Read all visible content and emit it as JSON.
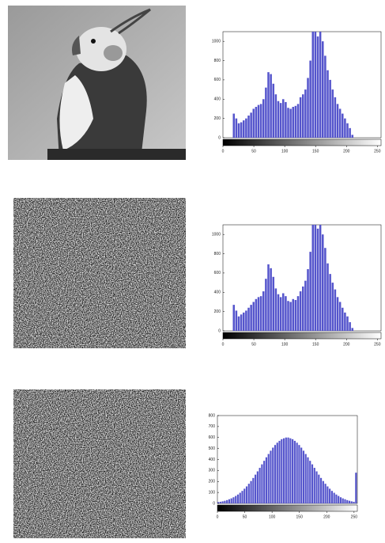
{
  "chart_data": [
    {
      "type": "histogram",
      "color": "#5555cc",
      "bins": [
        0,
        4,
        8,
        12,
        16,
        20,
        24,
        28,
        32,
        36,
        40,
        44,
        48,
        52,
        56,
        60,
        64,
        68,
        72,
        76,
        80,
        84,
        88,
        92,
        96,
        100,
        104,
        108,
        112,
        116,
        120,
        124,
        128,
        132,
        136,
        140,
        144,
        148,
        152,
        156,
        160,
        164,
        168,
        172,
        176,
        180,
        184,
        188,
        192,
        196,
        200,
        204,
        208,
        212,
        216,
        220,
        224,
        228,
        232,
        236,
        240,
        244,
        248,
        252,
        256
      ],
      "values": [
        0,
        0,
        0,
        0,
        250,
        200,
        150,
        160,
        180,
        200,
        230,
        260,
        300,
        320,
        340,
        350,
        400,
        520,
        680,
        660,
        560,
        450,
        380,
        360,
        400,
        370,
        310,
        300,
        320,
        330,
        350,
        420,
        450,
        500,
        620,
        800,
        1100,
        1100,
        1050,
        1100,
        1000,
        850,
        700,
        600,
        500,
        420,
        350,
        300,
        250,
        200,
        150,
        100,
        30,
        0,
        0,
        0,
        0,
        0,
        0,
        0,
        0,
        0,
        0,
        0
      ],
      "xlim": [
        0,
        256
      ],
      "xticks": [
        0,
        50,
        100,
        150,
        200,
        250
      ],
      "ylim": [
        0,
        1100
      ],
      "yticks": [
        0,
        200,
        400,
        600,
        800,
        1000
      ]
    },
    {
      "type": "histogram",
      "color": "#5555cc",
      "bins": [
        0,
        4,
        8,
        12,
        16,
        20,
        24,
        28,
        32,
        36,
        40,
        44,
        48,
        52,
        56,
        60,
        64,
        68,
        72,
        76,
        80,
        84,
        88,
        92,
        96,
        100,
        104,
        108,
        112,
        116,
        120,
        124,
        128,
        132,
        136,
        140,
        144,
        148,
        152,
        156,
        160,
        164,
        168,
        172,
        176,
        180,
        184,
        188,
        192,
        196,
        200,
        204,
        208,
        212,
        216,
        220,
        224,
        228,
        232,
        236,
        240,
        244,
        248,
        252,
        256
      ],
      "values": [
        0,
        0,
        0,
        0,
        270,
        210,
        150,
        170,
        190,
        210,
        240,
        270,
        300,
        330,
        350,
        360,
        410,
        540,
        690,
        650,
        560,
        440,
        380,
        350,
        390,
        360,
        310,
        300,
        330,
        320,
        360,
        410,
        460,
        520,
        640,
        820,
        1100,
        1100,
        1060,
        1100,
        1000,
        860,
        700,
        590,
        500,
        430,
        350,
        300,
        240,
        190,
        150,
        90,
        30,
        0,
        0,
        0,
        0,
        0,
        0,
        0,
        0,
        0,
        0,
        0
      ],
      "xlim": [
        0,
        256
      ],
      "xticks": [
        0,
        50,
        100,
        150,
        200,
        250
      ],
      "ylim": [
        0,
        1100
      ],
      "yticks": [
        0,
        200,
        400,
        600,
        800,
        1000
      ]
    },
    {
      "type": "histogram",
      "color": "#5555cc",
      "bins": [
        0,
        4,
        8,
        12,
        16,
        20,
        24,
        28,
        32,
        36,
        40,
        44,
        48,
        52,
        56,
        60,
        64,
        68,
        72,
        76,
        80,
        84,
        88,
        92,
        96,
        100,
        104,
        108,
        112,
        116,
        120,
        124,
        128,
        132,
        136,
        140,
        144,
        148,
        152,
        156,
        160,
        164,
        168,
        172,
        176,
        180,
        184,
        188,
        192,
        196,
        200,
        204,
        208,
        212,
        216,
        220,
        224,
        228,
        232,
        236,
        240,
        244,
        248,
        252,
        256
      ],
      "values": [
        12,
        15,
        19,
        24,
        30,
        38,
        46,
        56,
        68,
        81,
        97,
        114,
        134,
        155,
        179,
        204,
        232,
        262,
        292,
        324,
        356,
        388,
        420,
        450,
        480,
        508,
        532,
        553,
        570,
        585,
        593,
        600,
        600,
        593,
        585,
        570,
        553,
        532,
        508,
        480,
        450,
        420,
        388,
        356,
        324,
        292,
        262,
        232,
        204,
        179,
        155,
        134,
        114,
        97,
        81,
        68,
        56,
        46,
        38,
        30,
        24,
        19,
        15,
        280
      ],
      "xlim": [
        0,
        256
      ],
      "xticks": [
        0,
        50,
        100,
        150,
        200,
        250
      ],
      "ylim": [
        0,
        800
      ],
      "yticks": [
        0,
        100,
        200,
        300,
        400,
        500,
        600,
        700,
        800
      ]
    }
  ]
}
